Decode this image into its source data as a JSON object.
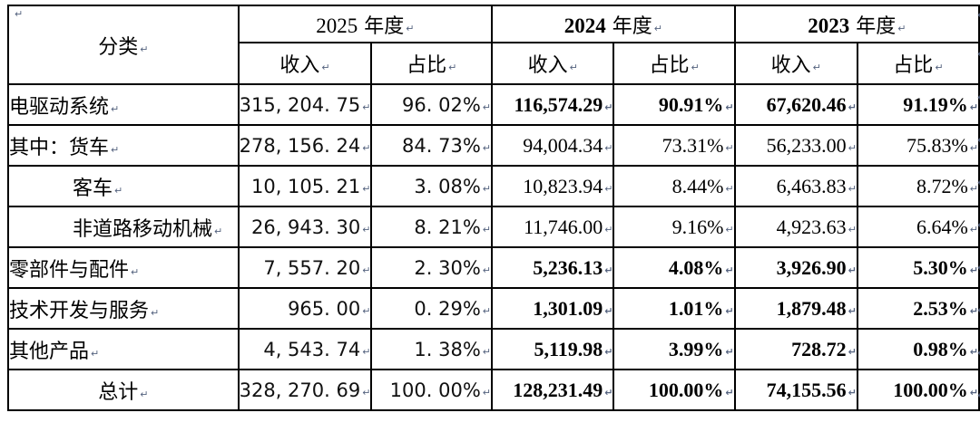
{
  "marks": {
    "cell_end": "↵",
    "row_end": "↵"
  },
  "table": {
    "category_header": "分类",
    "sub_headers": {
      "income": "收入",
      "share": "占比"
    },
    "year_groups": [
      {
        "year": "2025",
        "era": "年度",
        "bold": false
      },
      {
        "year": "2024",
        "era": "年度",
        "bold": true
      },
      {
        "year": "2023",
        "era": "年度",
        "bold": true
      }
    ],
    "rows": [
      {
        "label": "电驱动系统",
        "indent": false,
        "center": false,
        "bold": true,
        "v2025": [
          "315, 204. 75",
          "96. 02%"
        ],
        "v2024": [
          "116,574.29",
          "90.91%"
        ],
        "v2023": [
          "67,620.46",
          "91.19%"
        ]
      },
      {
        "label": "其中：货车",
        "indent": false,
        "center": false,
        "bold": false,
        "v2025": [
          "278, 156. 24",
          "84. 73%"
        ],
        "v2024": [
          "94,004.34",
          "73.31%"
        ],
        "v2023": [
          "56,233.00",
          "75.83%"
        ]
      },
      {
        "label": "客车",
        "indent": true,
        "center": false,
        "bold": false,
        "v2025": [
          "10, 105. 21",
          "3. 08%"
        ],
        "v2024": [
          "10,823.94",
          "8.44%"
        ],
        "v2023": [
          "6,463.83",
          "8.72%"
        ]
      },
      {
        "label": "非道路移动机械",
        "indent": true,
        "center": false,
        "bold": false,
        "v2025": [
          "26, 943. 30",
          "8. 21%"
        ],
        "v2024": [
          "11,746.00",
          "9.16%"
        ],
        "v2023": [
          "4,923.63",
          "6.64%"
        ]
      },
      {
        "label": "零部件与配件",
        "indent": false,
        "center": false,
        "bold": true,
        "v2025": [
          "7, 557. 20",
          "2. 30%"
        ],
        "v2024": [
          "5,236.13",
          "4.08%"
        ],
        "v2023": [
          "3,926.90",
          "5.30%"
        ]
      },
      {
        "label": "技术开发与服务",
        "indent": false,
        "center": false,
        "bold": true,
        "v2025": [
          "965. 00",
          "0. 29%"
        ],
        "v2024": [
          "1,301.09",
          "1.01%"
        ],
        "v2023": [
          "1,879.48",
          "2.53%"
        ]
      },
      {
        "label": "其他产品",
        "indent": false,
        "center": false,
        "bold": true,
        "v2025": [
          "4, 543. 74",
          "1. 38%"
        ],
        "v2024": [
          "5,119.98",
          "3.99%"
        ],
        "v2023": [
          "728.72",
          "0.98%"
        ]
      },
      {
        "label": "总计",
        "indent": false,
        "center": true,
        "bold": true,
        "v2025": [
          "328, 270. 69",
          "100. 00%"
        ],
        "v2024": [
          "128,231.49",
          "100.00%"
        ],
        "v2023": [
          "74,155.56",
          "100.00%"
        ]
      }
    ]
  }
}
